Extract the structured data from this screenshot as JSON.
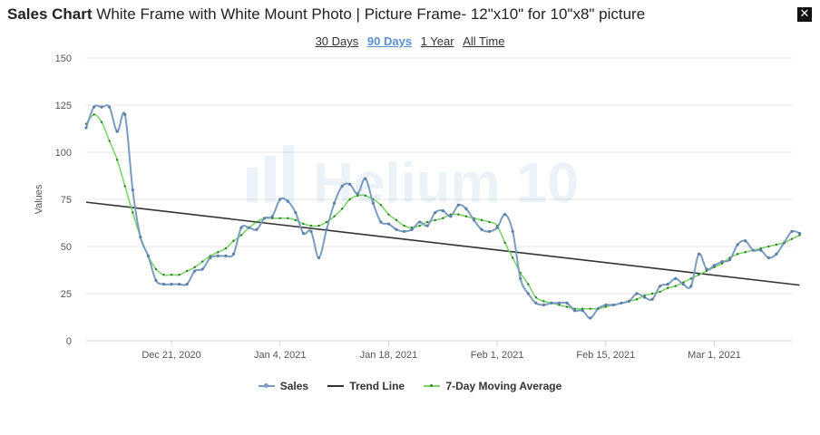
{
  "header": {
    "title_bold": "Sales Chart",
    "title_rest": "White Frame with White Mount Photo | Picture Frame- 12\"x10\" for 10\"x8\" picture",
    "close_label": "✕"
  },
  "ranges": [
    {
      "label": "30 Days",
      "active": false
    },
    {
      "label": "90 Days",
      "active": true
    },
    {
      "label": "1 Year",
      "active": false
    },
    {
      "label": "All Time",
      "active": false
    }
  ],
  "watermark": "Helium 10",
  "chart_data": {
    "type": "line",
    "ylabel": "Values",
    "ylim": [
      0,
      150
    ],
    "yticks": [
      0,
      25,
      50,
      75,
      100,
      125,
      150
    ],
    "x_start": "2020-12-10",
    "x_end": "2021-03-11",
    "xticks": [
      {
        "date": "2020-12-21",
        "label": "Dec 21, 2020"
      },
      {
        "date": "2021-01-04",
        "label": "Jan 4, 2021"
      },
      {
        "date": "2021-01-18",
        "label": "Jan 18, 2021"
      },
      {
        "date": "2021-02-01",
        "label": "Feb 1, 2021"
      },
      {
        "date": "2021-02-15",
        "label": "Feb 15, 2021"
      },
      {
        "date": "2021-03-01",
        "label": "Mar 1, 2021"
      }
    ],
    "series": [
      {
        "name": "Sales",
        "color": "#7a9cc0",
        "values": [
          113,
          124,
          124,
          124,
          111,
          120,
          80,
          55,
          45,
          32,
          30,
          30,
          30,
          30,
          37,
          38,
          44,
          45,
          45,
          46,
          60,
          60,
          59,
          65,
          66,
          75,
          74,
          68,
          57,
          58,
          44,
          59,
          73,
          82,
          83,
          78,
          86,
          73,
          63,
          62,
          59,
          58,
          59,
          63,
          61,
          68,
          69,
          66,
          72,
          70,
          64,
          59,
          58,
          60,
          67,
          58,
          33,
          25,
          20,
          19,
          20,
          20,
          20,
          16,
          16,
          12,
          17,
          19,
          19,
          20,
          21,
          25,
          23,
          22,
          29,
          30,
          33,
          30,
          29,
          46,
          38,
          40,
          42,
          43,
          51,
          53,
          48,
          48,
          44,
          46,
          52,
          58,
          57
        ]
      },
      {
        "name": "Trend Line",
        "color": "#333333",
        "points": [
          [
            0,
            73.5
          ],
          [
            92,
            29.5
          ]
        ]
      },
      {
        "name": "7-Day Moving Average",
        "color": "#7fd36b",
        "values": [
          115,
          120,
          116,
          106,
          96,
          82,
          68,
          55,
          45,
          38,
          35,
          35,
          35,
          37,
          39,
          42,
          45,
          47,
          49,
          53,
          56,
          60,
          63,
          65,
          65,
          65,
          65,
          64,
          62,
          61,
          61,
          63,
          66,
          70,
          75,
          77,
          77,
          75,
          72,
          67,
          64,
          61,
          60,
          61,
          63,
          64,
          65,
          67,
          67,
          66,
          65,
          64,
          63,
          61,
          52,
          44,
          36,
          30,
          23,
          21,
          20,
          19,
          18,
          17,
          17,
          17,
          17,
          18,
          19,
          20,
          21,
          22,
          24,
          25,
          26,
          28,
          29,
          31,
          33,
          35,
          37,
          39,
          41,
          44,
          46,
          47,
          48,
          49,
          50,
          51,
          52,
          54,
          56
        ]
      }
    ],
    "grid": true,
    "legend": "bottom-center"
  }
}
